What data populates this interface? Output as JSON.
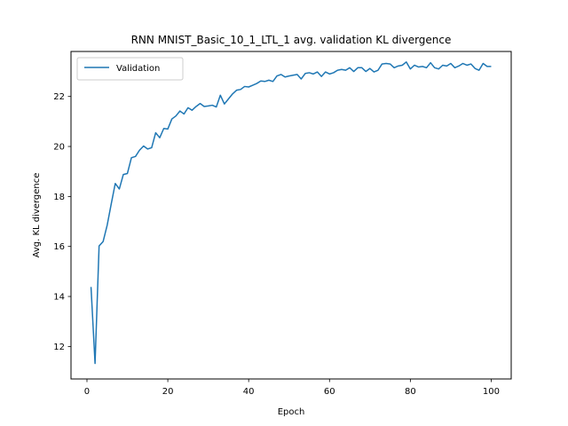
{
  "chart_data": {
    "type": "line",
    "title": "RNN MNIST_Basic_10_1_LTL_1 avg. validation KL divergence",
    "xlabel": "Epoch",
    "ylabel": "Avg. KL divergence",
    "xlim": [
      -3.95,
      104.95
    ],
    "ylim": [
      10.7,
      23.8
    ],
    "xticks": [
      0,
      20,
      40,
      60,
      80,
      100
    ],
    "yticks": [
      12,
      14,
      16,
      18,
      20,
      22
    ],
    "grid": false,
    "legend": {
      "position": "upper-left",
      "entries": [
        "Validation"
      ]
    },
    "series": [
      {
        "name": "Validation",
        "color": "#1f77b4",
        "x": [
          1,
          2,
          3,
          4,
          5,
          6,
          7,
          8,
          9,
          10,
          11,
          12,
          13,
          14,
          15,
          16,
          17,
          18,
          19,
          20,
          21,
          22,
          23,
          24,
          25,
          26,
          27,
          28,
          29,
          30,
          31,
          32,
          33,
          34,
          35,
          36,
          37,
          38,
          39,
          40,
          41,
          42,
          43,
          44,
          45,
          46,
          47,
          48,
          49,
          50,
          51,
          52,
          53,
          54,
          55,
          56,
          57,
          58,
          59,
          60,
          61,
          62,
          63,
          64,
          65,
          66,
          67,
          68,
          69,
          70,
          71,
          72,
          73,
          74,
          75,
          76,
          77,
          78,
          79,
          80,
          81,
          82,
          83,
          84,
          85,
          86,
          87,
          88,
          89,
          90,
          91,
          92,
          93,
          94,
          95,
          96,
          97,
          98,
          99,
          100
        ],
        "values": [
          14.38,
          11.32,
          16.02,
          16.2,
          16.85,
          17.7,
          18.52,
          18.3,
          18.88,
          18.92,
          19.55,
          19.6,
          19.85,
          20.02,
          19.9,
          19.95,
          20.55,
          20.35,
          20.72,
          20.7,
          21.1,
          21.22,
          21.42,
          21.3,
          21.55,
          21.45,
          21.6,
          21.72,
          21.6,
          21.62,
          21.65,
          21.58,
          22.05,
          21.7,
          21.9,
          22.1,
          22.25,
          22.28,
          22.4,
          22.38,
          22.45,
          22.52,
          22.62,
          22.6,
          22.65,
          22.6,
          22.82,
          22.88,
          22.78,
          22.82,
          22.85,
          22.88,
          22.7,
          22.92,
          22.95,
          22.9,
          22.98,
          22.8,
          22.98,
          22.9,
          22.95,
          23.05,
          23.08,
          23.05,
          23.15,
          23.0,
          23.15,
          23.15,
          23.0,
          23.12,
          22.98,
          23.05,
          23.3,
          23.32,
          23.3,
          23.15,
          23.22,
          23.25,
          23.38,
          23.1,
          23.25,
          23.18,
          23.2,
          23.15,
          23.35,
          23.15,
          23.1,
          23.25,
          23.22,
          23.32,
          23.15,
          23.22,
          23.32,
          23.25,
          23.3,
          23.12,
          23.05,
          23.32,
          23.2,
          23.2
        ]
      }
    ]
  }
}
